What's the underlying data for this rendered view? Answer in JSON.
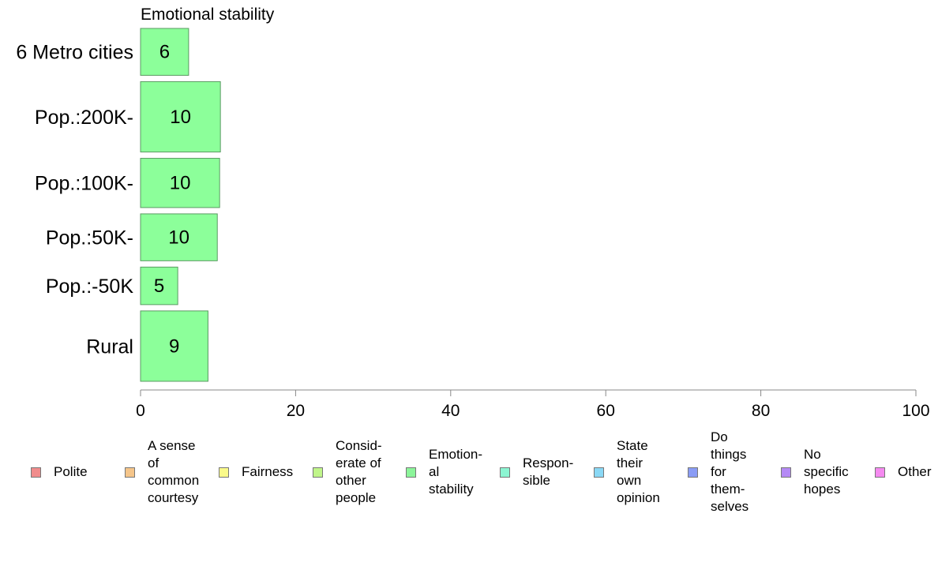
{
  "chart_data": {
    "type": "bar",
    "orientation": "horizontal",
    "title": "Emotional stability",
    "categories": [
      "6 Metro cities",
      "Pop.:200K-",
      "Pop.:100K-",
      "Pop.:50K-",
      "Pop.:-50K",
      "Rural"
    ],
    "values": [
      6.2,
      10.3,
      10.2,
      9.9,
      4.8,
      8.7
    ],
    "value_labels": [
      "6",
      "10",
      "10",
      "10",
      "5",
      "9"
    ],
    "relative_group_sizes": [
      1.0,
      1.5,
      1.05,
      1.0,
      0.8,
      1.5
    ],
    "xlim": [
      0,
      100
    ],
    "xticks": [
      0,
      20,
      40,
      60,
      80,
      100
    ],
    "xlabel": "",
    "ylabel": "",
    "grid": false,
    "bar_color": "#8cff9a",
    "bar_border_color": "#5a9a62",
    "legend_position": "bottom",
    "legend": [
      {
        "label": "Polite",
        "color": "#f08c8c"
      },
      {
        "label": "A sense\nof\ncommon\ncourtesy",
        "color": "#f5c58a"
      },
      {
        "label": "Fairness",
        "color": "#fafa8a"
      },
      {
        "label": "Consid-\nerate of\nother\npeople",
        "color": "#c0f58a"
      },
      {
        "label": "Emotion-\nal\nstability",
        "color": "#8cf59a"
      },
      {
        "label": "Respon-\nsible",
        "color": "#8cf5d2"
      },
      {
        "label": "State\ntheir\nown\nopinion",
        "color": "#8ad8f5"
      },
      {
        "label": "Do\nthings\nfor\nthem-\nselves",
        "color": "#8a9cf5"
      },
      {
        "label": "No\nspecific\nhopes",
        "color": "#b58af5"
      },
      {
        "label": "Other",
        "color": "#f58af0"
      }
    ]
  }
}
